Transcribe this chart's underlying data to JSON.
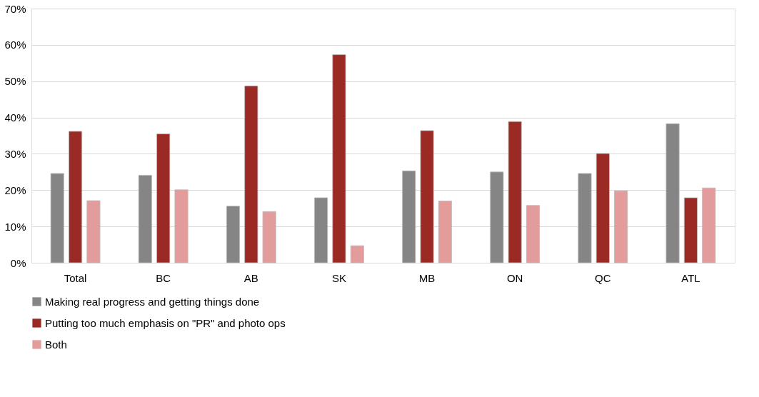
{
  "chart_data": {
    "type": "bar",
    "categories": [
      "Total",
      "BC",
      "AB",
      "SK",
      "MB",
      "ON",
      "QC",
      "ATL"
    ],
    "series": [
      {
        "name": "Making real progress and getting things done",
        "color": "#858585",
        "values": [
          24.6,
          24.1,
          15.6,
          17.9,
          25.3,
          25.0,
          24.6,
          38.3
        ]
      },
      {
        "name": "Putting too much emphasis on \"PR\" and photo ops",
        "color": "#9b2a24",
        "values": [
          36.2,
          35.5,
          48.7,
          57.3,
          36.4,
          38.9,
          30.1,
          17.9
        ]
      },
      {
        "name": "Both",
        "color": "#e39c9c",
        "values": [
          17.1,
          20.1,
          14.1,
          4.7,
          17.0,
          15.8,
          19.8,
          20.6
        ]
      }
    ],
    "ylim": [
      0,
      70
    ],
    "yticks": [
      {
        "value": 0,
        "label": "0%"
      },
      {
        "value": 10,
        "label": "10%"
      },
      {
        "value": 20,
        "label": "20%"
      },
      {
        "value": 30,
        "label": "30%"
      },
      {
        "value": 40,
        "label": "40%"
      },
      {
        "value": 50,
        "label": "50%"
      },
      {
        "value": 60,
        "label": "60%"
      },
      {
        "value": 70,
        "label": "70%"
      }
    ],
    "grid": "y",
    "legend": "bottom"
  }
}
